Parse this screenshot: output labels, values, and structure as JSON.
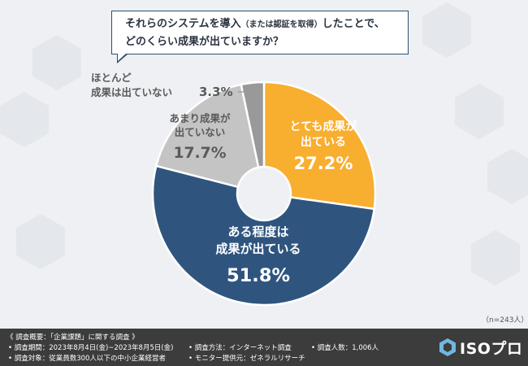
{
  "title": {
    "line1_a": "それらのシステムを導入",
    "line1_b": "（または認証を取得）",
    "line1_c": "したことで、",
    "line2": "どのくらい成果が出ていますか？"
  },
  "chart_data": {
    "type": "pie",
    "n_label": "（n=243人）",
    "slices": [
      {
        "label_lines": [
          "とても成果が",
          "出ている"
        ],
        "value": 27.2,
        "value_label": "27.2%",
        "color": "#f8ae2f",
        "label_color": "#ffffff"
      },
      {
        "label_lines": [
          "ある程度は",
          "成果が出ている"
        ],
        "value": 51.8,
        "value_label": "51.8%",
        "color": "#2f557f",
        "label_color": "#ffffff"
      },
      {
        "label_lines": [
          "あまり成果が",
          "出ていない"
        ],
        "value": 17.7,
        "value_label": "17.7%",
        "color": "#c4c4c4",
        "label_color": "#5a5a5a"
      },
      {
        "label_lines": [
          "ほとんど",
          "成果は出ていない"
        ],
        "value": 3.3,
        "value_label": "3.3%",
        "color": "#999999",
        "label_color": "#5a5a5a"
      }
    ]
  },
  "footer": {
    "heading": "《 調査概要：「企業課題」に関する調査 》",
    "period": "• 調査期間：2023年8月4日(金)~2023年8月5日(金)",
    "method": "• 調査方法：インターネット調査",
    "count": "• 調査人数：1,006人",
    "target": "• 調査対象：従業員数300人以下の中小企業経営者",
    "provider": "• モニター提供元：ゼネラルリサーチ"
  },
  "logo": {
    "text": "ISOプロ",
    "icon": "hexagon-logo-icon"
  }
}
